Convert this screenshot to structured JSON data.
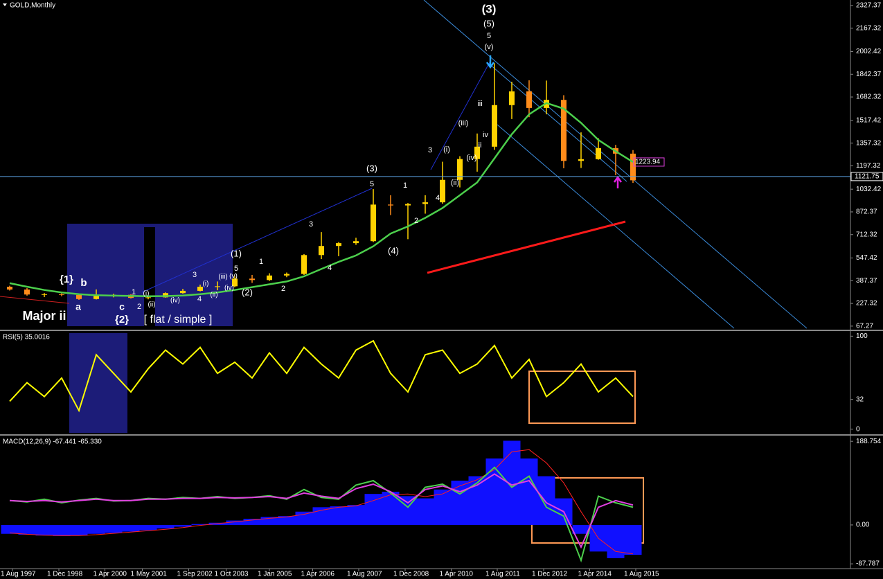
{
  "chart_data": [
    {
      "type": "candlestick",
      "title": "GOLD,Monthly",
      "x": [
        1997.5,
        1998,
        1998.5,
        1999,
        1999.5,
        2000,
        2000.5,
        2001,
        2001.5,
        2002,
        2002.5,
        2003,
        2003.5,
        2004,
        2004.5,
        2005,
        2005.5,
        2006,
        2006.5,
        2007,
        2007.5,
        2008,
        2008.5,
        2009,
        2009.5,
        2010,
        2010.5,
        2011,
        2011.5,
        2012,
        2012.5,
        2013,
        2013.5,
        2014,
        2014.5,
        2015,
        2015.5
      ],
      "open": [
        345,
        325,
        290,
        292,
        287,
        258,
        285,
        288,
        266,
        270,
        300,
        316,
        345,
        348,
        402,
        392,
        424,
        435,
        568,
        632,
        652,
        666,
        924,
        918,
        928,
        940,
        1098,
        1245,
        1332,
        1625,
        1722,
        1605,
        1662,
        1232,
        1244,
        1322,
        1283
      ],
      "high": [
        352,
        335,
        300,
        298,
        292,
        326,
        296,
        292,
        280,
        305,
        330,
        360,
        382,
        418,
        428,
        440,
        445,
        575,
        730,
        660,
        690,
        1033,
        990,
        935,
        990,
        1226,
        1265,
        1425,
        1920,
        1790,
        1800,
        1798,
        1695,
        1433,
        1392,
        1345,
        1308
      ],
      "low": [
        318,
        282,
        272,
        278,
        252,
        255,
        270,
        262,
        256,
        268,
        296,
        312,
        320,
        342,
        372,
        386,
        412,
        428,
        540,
        560,
        640,
        660,
        850,
        680,
        860,
        930,
        1045,
        1156,
        1310,
        1527,
        1540,
        1560,
        1180,
        1182,
        1240,
        1131,
        1077
      ],
      "close": [
        325,
        290,
        292,
        287,
        258,
        285,
        288,
        266,
        270,
        300,
        316,
        345,
        348,
        402,
        392,
        424,
        435,
        568,
        632,
        652,
        666,
        924,
        918,
        928,
        940,
        1098,
        1245,
        1332,
        1625,
        1722,
        1605,
        1662,
        1232,
        1244,
        1322,
        1283,
        1095
      ],
      "up_color": "#ffd200",
      "down_color": "#ff8c1a",
      "ma": {
        "color": "#4ccf4c",
        "values": [
          370,
          345,
          322,
          305,
          292,
          285,
          282,
          280,
          278,
          279,
          283,
          292,
          305,
          322,
          342,
          362,
          382,
          418,
          470,
          520,
          565,
          630,
          720,
          770,
          830,
          900,
          990,
          1080,
          1250,
          1420,
          1560,
          1640,
          1600,
          1500,
          1380,
          1300,
          1224
        ]
      },
      "trend": {
        "color": "#ff1a1a",
        "x": [
          2009.56,
          2015.28
        ],
        "values": [
          443,
          804
        ]
      },
      "last_price": 1121.75,
      "ma_label": 1223.94,
      "xlim": [
        1997.22,
        2021.78
      ],
      "xticks": [
        {
          "value": 1997.58,
          "label": "1 Aug 1997"
        },
        {
          "value": 1998.92,
          "label": "1 Dec 1998"
        },
        {
          "value": 2000.25,
          "label": "1 Apr 2000"
        },
        {
          "value": 2001.33,
          "label": "1 May 2001"
        },
        {
          "value": 2002.67,
          "label": "1 Sep 2002"
        },
        {
          "value": 2003.75,
          "label": "1 Oct 2003"
        },
        {
          "value": 2005.0,
          "label": "1 Jan 2005"
        },
        {
          "value": 2006.25,
          "label": "1 Apr 2006"
        },
        {
          "value": 2007.58,
          "label": "1 Aug 2007"
        },
        {
          "value": 2008.92,
          "label": "1 Dec 2008"
        },
        {
          "value": 2010.25,
          "label": "1 Apr 2010"
        },
        {
          "value": 2011.58,
          "label": "1 Aug 2011"
        },
        {
          "value": 2012.92,
          "label": "1 Dec 2012"
        },
        {
          "value": 2014.25,
          "label": "1 Apr 2014"
        },
        {
          "value": 2015.58,
          "label": "1 Aug 2015"
        }
      ],
      "ylim": [
        52,
        2366
      ],
      "yticks": [
        67.27,
        227.32,
        387.37,
        547.42,
        712.32,
        872.37,
        1032.42,
        1197.32,
        1357.32,
        1517.42,
        1682.32,
        1842.37,
        2002.42,
        2167.32,
        2327.37
      ],
      "annotations": [
        {
          "text": "(3)",
          "color": "#ffe500"
        },
        {
          "text": "(5)",
          "color": "#ffe500"
        },
        {
          "text": "5",
          "color": "#ffffff"
        },
        {
          "text": "(v)",
          "color": "#ffffff"
        },
        {
          "text": "(3)",
          "color": "#ffe500"
        },
        {
          "text": "5",
          "color": "#ffffff"
        },
        {
          "text": "(4)",
          "color": "#ffe500"
        },
        {
          "text": "(1)",
          "color": "#ffe500"
        },
        {
          "text": "5",
          "color": "#ffffff"
        },
        {
          "text": "(2)",
          "color": "#ffe500"
        },
        {
          "text": "{1}",
          "color": "#ffe500"
        },
        {
          "text": "b",
          "color": "#2aa8ff"
        },
        {
          "text": "a",
          "color": "#2aa8ff"
        },
        {
          "text": "c",
          "color": "#2aa8ff"
        },
        {
          "text": "{2}",
          "color": "#ffe500"
        },
        {
          "text": "[ flat / simple ]",
          "color": "#ffffff"
        },
        {
          "text": "Major ii",
          "color": "#e020e0"
        },
        {
          "text": "1",
          "color": "#ffffff"
        },
        {
          "text": "2",
          "color": "#ffffff"
        },
        {
          "text": "3",
          "color": "#ffffff"
        },
        {
          "text": "4",
          "color": "#ffffff"
        },
        {
          "text": "1",
          "color": "#ffffff"
        },
        {
          "text": "2",
          "color": "#ffffff"
        },
        {
          "text": "3",
          "color": "#ffffff"
        },
        {
          "text": "4",
          "color": "#ffffff"
        },
        {
          "text": "1",
          "color": "#ffffff"
        },
        {
          "text": "2",
          "color": "#ffffff"
        },
        {
          "text": "3",
          "color": "#ffffff"
        },
        {
          "text": "4",
          "color": "#ffffff"
        },
        {
          "text": "(i)",
          "color": "#ffffff"
        },
        {
          "text": "(ii)",
          "color": "#ffffff"
        },
        {
          "text": "(iii)",
          "color": "#ffffff"
        },
        {
          "text": "(iv)",
          "color": "#ffffff"
        },
        {
          "text": "iii",
          "color": "#e020e0"
        },
        {
          "text": "iv",
          "color": "#e020e0"
        },
        {
          "text": "ii",
          "color": "#e020e0"
        },
        {
          "text": "(i)",
          "color": "#e89030"
        },
        {
          "text": "(ii)",
          "color": "#e89030"
        },
        {
          "text": "(iv)",
          "color": "#e89030"
        },
        {
          "text": "(i)",
          "color": "#e89030"
        },
        {
          "text": "(ii)",
          "color": "#e89030"
        },
        {
          "text": "(iii)",
          "color": "#e89030"
        },
        {
          "text": "(iv)",
          "color": "#e89030"
        },
        {
          "text": "(v)",
          "color": "#e89030"
        }
      ]
    },
    {
      "type": "line",
      "title": "RSI(5) 35.0016",
      "x": [
        1997.5,
        1998,
        1998.5,
        1999,
        1999.5,
        2000,
        2000.5,
        2001,
        2001.5,
        2002,
        2002.5,
        2003,
        2003.5,
        2004,
        2004.5,
        2005,
        2005.5,
        2006,
        2006.5,
        2007,
        2007.5,
        2008,
        2008.5,
        2009,
        2009.5,
        2010,
        2010.5,
        2011,
        2011.5,
        2012,
        2012.5,
        2013,
        2013.5,
        2014,
        2014.5,
        2015,
        2015.5
      ],
      "values": [
        30,
        50,
        35,
        55,
        20,
        80,
        60,
        40,
        65,
        85,
        70,
        88,
        60,
        72,
        55,
        82,
        60,
        88,
        70,
        55,
        85,
        95,
        60,
        40,
        80,
        85,
        60,
        70,
        90,
        55,
        75,
        35,
        50,
        70,
        40,
        55,
        35
      ],
      "color": "#ffff00",
      "ylim": [
        -4,
        104
      ],
      "yticks": [
        0,
        32,
        100
      ]
    },
    {
      "type": "macd",
      "title": "MACD(12,26,9) -67.441 -65.330",
      "x": [
        1997.5,
        1998,
        1998.5,
        1999,
        1999.5,
        2000,
        2000.5,
        2001,
        2001.5,
        2002,
        2002.5,
        2003,
        2003.5,
        2004,
        2004.5,
        2005,
        2005.5,
        2006,
        2006.5,
        2007,
        2007.5,
        2008,
        2008.5,
        2009,
        2009.5,
        2010,
        2010.5,
        2011,
        2011.5,
        2012,
        2012.5,
        2013,
        2013.5,
        2014,
        2014.5,
        2015,
        2015.5
      ],
      "histogram": {
        "color": "#1010ff",
        "values": [
          -20,
          -22,
          -24,
          -25,
          -24,
          -20,
          -18,
          -15,
          -12,
          -8,
          -4,
          2,
          5,
          10,
          14,
          18,
          20,
          30,
          40,
          42,
          45,
          70,
          75,
          65,
          60,
          80,
          100,
          110,
          150,
          190,
          150,
          110,
          60,
          -20,
          -60,
          -75,
          -67.441
        ]
      },
      "series": [
        {
          "color": "#ff2020",
          "values": [
            -18,
            -21,
            -23,
            -24,
            -24,
            -22,
            -19,
            -16,
            -13,
            -10,
            -6,
            -1,
            3,
            7,
            11,
            15,
            18,
            24,
            33,
            40,
            43,
            55,
            68,
            70,
            64,
            70,
            88,
            102,
            125,
            165,
            170,
            140,
            95,
            30,
            -30,
            -60,
            -65.33
          ]
        },
        {
          "color": "#4ccf4c",
          "values": [
            55,
            52,
            58,
            50,
            56,
            60,
            54,
            55,
            60,
            58,
            62,
            60,
            64,
            60,
            62,
            66,
            58,
            80,
            62,
            58,
            90,
            100,
            72,
            40,
            85,
            92,
            70,
            95,
            130,
            85,
            110,
            40,
            20,
            -80,
            65,
            50,
            40
          ]
        },
        {
          "color": "#e040e0",
          "values": [
            55,
            53,
            55,
            52,
            55,
            58,
            55,
            55,
            58,
            58,
            60,
            60,
            62,
            61,
            62,
            64,
            60,
            72,
            65,
            60,
            82,
            92,
            75,
            50,
            80,
            88,
            75,
            90,
            115,
            90,
            100,
            50,
            30,
            -50,
            40,
            55,
            45
          ]
        }
      ],
      "ylim": [
        -97,
        200
      ],
      "yticks": [
        -87.787,
        {
          "value": 0,
          "label": "0.00"
        },
        188.754
      ]
    }
  ]
}
